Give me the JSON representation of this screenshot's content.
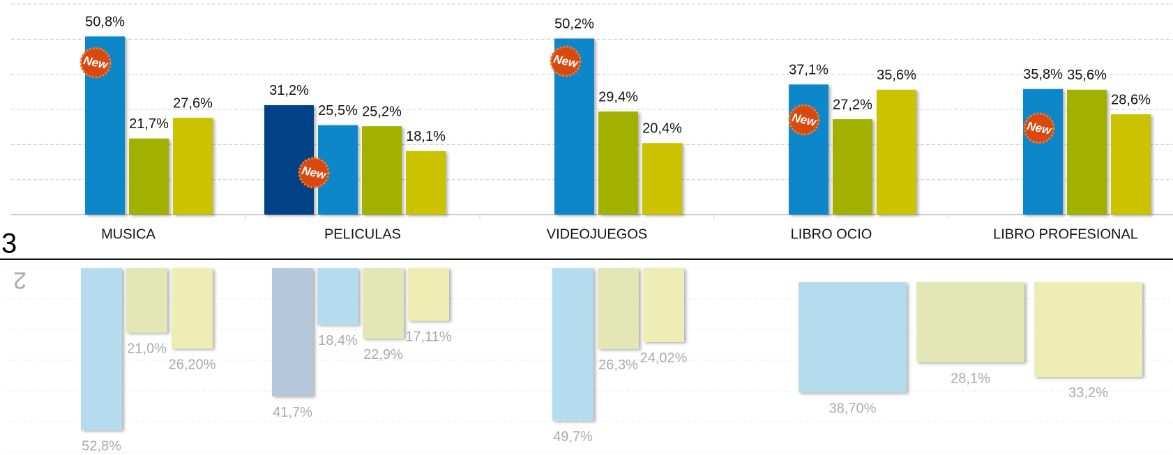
{
  "chart_data": [
    {
      "type": "bar",
      "ylim": [
        0,
        60
      ],
      "yticks": [
        0,
        10,
        20,
        30,
        40,
        50,
        60
      ],
      "grid": true,
      "groups": [
        {
          "category": "MUSICA",
          "badge": "New",
          "bars": [
            {
              "value": 50.8,
              "label": "50,8%",
              "color": "#0a87c9"
            },
            {
              "value": 21.7,
              "label": "21,7%",
              "color": "#a2b000"
            },
            {
              "value": 27.6,
              "label": "27,6%",
              "color": "#cbc300"
            }
          ]
        },
        {
          "category": "PELICULAS",
          "badge": "New",
          "bars": [
            {
              "value": 31.2,
              "label": "31,2%",
              "color": "#004385"
            },
            {
              "value": 25.5,
              "label": "25,5%",
              "color": "#0a87c9"
            },
            {
              "value": 25.2,
              "label": "25,2%",
              "color": "#a2b000"
            },
            {
              "value": 18.1,
              "label": "18,1%",
              "color": "#cbc300"
            }
          ]
        },
        {
          "category": "VIDEOJUEGOS",
          "badge": "New",
          "bars": [
            {
              "value": 50.2,
              "label": "50,2%",
              "color": "#0a87c9"
            },
            {
              "value": 29.4,
              "label": "29,4%",
              "color": "#a2b000"
            },
            {
              "value": 20.4,
              "label": "20,4%",
              "color": "#cbc300"
            }
          ]
        },
        {
          "category": "LIBRO OCIO",
          "badge": "New",
          "bars": [
            {
              "value": 37.1,
              "label": "37,1%",
              "color": "#0a87c9"
            },
            {
              "value": 27.2,
              "label": "27,2%",
              "color": "#a2b000"
            },
            {
              "value": 35.6,
              "label": "35,6%",
              "color": "#cbc300"
            }
          ]
        },
        {
          "category": "LIBRO PROFESIONAL",
          "badge": "New",
          "bars": [
            {
              "value": 35.8,
              "label": "35,8%",
              "color": "#0a87c9"
            },
            {
              "value": 35.6,
              "label": "35,6%",
              "color": "#a2b000"
            },
            {
              "value": 28.6,
              "label": "28,6%",
              "color": "#cbc300"
            }
          ]
        }
      ]
    },
    {
      "type": "bar",
      "ylim": [
        0,
        60
      ],
      "yticks": [
        0,
        10,
        20,
        30,
        40,
        50,
        60
      ],
      "grid": true,
      "reversed": true,
      "groups": [
        {
          "bars": [
            {
              "value": 52.8,
              "label": "52,8%",
              "color": "#b5dbee"
            },
            {
              "value": 21.0,
              "label": "21,0%",
              "color": "#e3e7b6"
            },
            {
              "value": 26.2,
              "label": "26,20%",
              "color": "#eeeeb4"
            }
          ]
        },
        {
          "bars": [
            {
              "value": 41.7,
              "label": "41,7%",
              "color": "#b5c8dc"
            },
            {
              "value": 18.4,
              "label": "18,4%",
              "color": "#b5dbee"
            },
            {
              "value": 22.9,
              "label": "22,9%",
              "color": "#e3e7b6"
            },
            {
              "value": 17.11,
              "label": "17,11%",
              "color": "#eeeeb4"
            }
          ]
        },
        {
          "bars": [
            {
              "value": 49.7,
              "label": "49,7%",
              "color": "#b5dbee"
            },
            {
              "value": 26.3,
              "label": "26,3%",
              "color": "#e3e7b6"
            },
            {
              "value": 24.02,
              "label": "24,02%",
              "color": "#eeeeb4"
            }
          ]
        }
      ]
    },
    {
      "type": "bar",
      "ylim": [
        0,
        65
      ],
      "reversed": true,
      "groups": [
        {
          "bars": [
            {
              "value": 38.7,
              "label": "38,70%",
              "color": "#b5dbee"
            },
            {
              "value": 28.1,
              "label": "28,1%",
              "color": "#e3e7b6"
            },
            {
              "value": 33.2,
              "label": "33,2%",
              "color": "#eeeeb4"
            }
          ]
        }
      ]
    }
  ],
  "section_labels": {
    "current": "3",
    "previous": "2"
  }
}
